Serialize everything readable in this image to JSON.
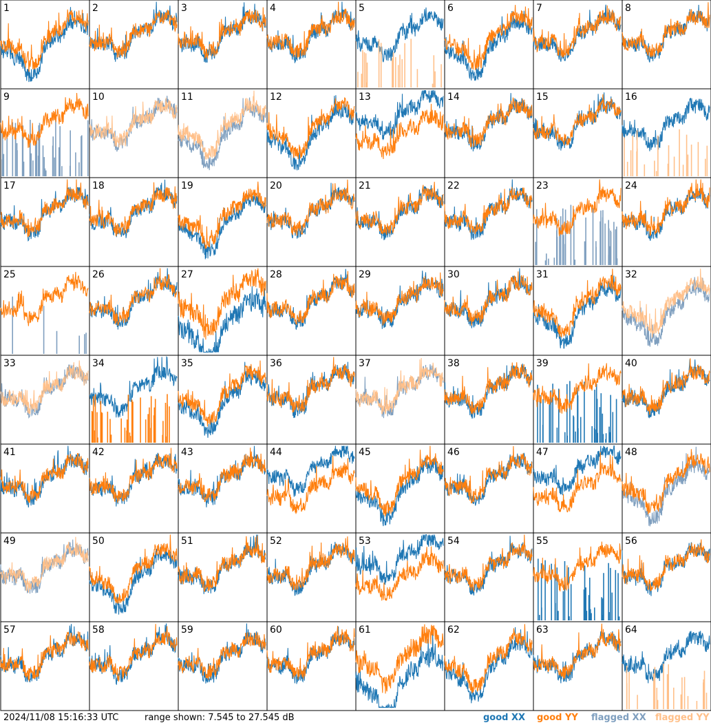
{
  "footer": {
    "timestamp": "2024/11/08 15:16:33 UTC",
    "range_text": "range shown: 7.545 to 27.545 dB",
    "legend": {
      "good_xx": "good XX",
      "good_yy": "good YY",
      "flagged_xx": "flagged XX",
      "flagged_yy": "flagged YY"
    }
  },
  "colors": {
    "good_xx": "#1f77b4",
    "good_yy": "#ff7f0e",
    "flagged_xx": "#7f9fbf",
    "flagged_yy": "#ffc08a",
    "border": "#000000"
  },
  "chart_data": {
    "type": "line",
    "layout": "8x8 small-multiples of per-tile spectra",
    "ylim_db": [
      7.545,
      27.545
    ],
    "series_names": [
      "good XX",
      "good YY",
      "flagged XX",
      "flagged YY"
    ],
    "tiles": [
      {
        "label": "1",
        "xx": "good",
        "yy": "good",
        "style": "deep"
      },
      {
        "label": "2",
        "xx": "good",
        "yy": "good",
        "style": "normal"
      },
      {
        "label": "3",
        "xx": "good",
        "yy": "good",
        "style": "normal"
      },
      {
        "label": "4",
        "xx": "good",
        "yy": "good",
        "style": "normal"
      },
      {
        "label": "5",
        "xx": "good",
        "yy": "flagged",
        "style": "yy-spikes"
      },
      {
        "label": "6",
        "xx": "good",
        "yy": "good",
        "style": "deep"
      },
      {
        "label": "7",
        "xx": "good",
        "yy": "good",
        "style": "normal"
      },
      {
        "label": "8",
        "xx": "good",
        "yy": "good",
        "style": "normal"
      },
      {
        "label": "9",
        "xx": "flagged",
        "yy": "good",
        "style": "xx-spikes"
      },
      {
        "label": "10",
        "xx": "flagged",
        "yy": "flagged",
        "style": "normal"
      },
      {
        "label": "11",
        "xx": "flagged",
        "yy": "flagged",
        "style": "deep"
      },
      {
        "label": "12",
        "xx": "good",
        "yy": "good",
        "style": "deep"
      },
      {
        "label": "13",
        "xx": "good",
        "yy": "good",
        "style": "split"
      },
      {
        "label": "14",
        "xx": "good",
        "yy": "good",
        "style": "normal"
      },
      {
        "label": "15",
        "xx": "good",
        "yy": "good",
        "style": "normal"
      },
      {
        "label": "16",
        "xx": "good",
        "yy": "flagged",
        "style": "yy-spikes"
      },
      {
        "label": "17",
        "xx": "good",
        "yy": "good",
        "style": "normal"
      },
      {
        "label": "18",
        "xx": "good",
        "yy": "good",
        "style": "normal"
      },
      {
        "label": "19",
        "xx": "good",
        "yy": "good",
        "style": "deep"
      },
      {
        "label": "20",
        "xx": "good",
        "yy": "good",
        "style": "normal"
      },
      {
        "label": "21",
        "xx": "good",
        "yy": "good",
        "style": "normal"
      },
      {
        "label": "22",
        "xx": "good",
        "yy": "good",
        "style": "normal"
      },
      {
        "label": "23",
        "xx": "flagged",
        "yy": "good",
        "style": "xx-spikes"
      },
      {
        "label": "24",
        "xx": "good",
        "yy": "good",
        "style": "normal"
      },
      {
        "label": "25",
        "xx": "flagged",
        "yy": "good",
        "style": "xx-spikes-sparse"
      },
      {
        "label": "26",
        "xx": "good",
        "yy": "good",
        "style": "normal"
      },
      {
        "label": "27",
        "xx": "good",
        "yy": "good",
        "style": "split-deep"
      },
      {
        "label": "28",
        "xx": "good",
        "yy": "good",
        "style": "normal"
      },
      {
        "label": "29",
        "xx": "good",
        "yy": "good",
        "style": "normal"
      },
      {
        "label": "30",
        "xx": "good",
        "yy": "good",
        "style": "normal"
      },
      {
        "label": "31",
        "xx": "good",
        "yy": "good",
        "style": "deep"
      },
      {
        "label": "32",
        "xx": "flagged",
        "yy": "flagged",
        "style": "deep"
      },
      {
        "label": "33",
        "xx": "flagged",
        "yy": "flagged",
        "style": "normal"
      },
      {
        "label": "34",
        "xx": "good",
        "yy": "good",
        "style": "yy-spikes-good"
      },
      {
        "label": "35",
        "xx": "good",
        "yy": "good",
        "style": "deep"
      },
      {
        "label": "36",
        "xx": "good",
        "yy": "good",
        "style": "normal"
      },
      {
        "label": "37",
        "xx": "flagged",
        "yy": "flagged",
        "style": "normal"
      },
      {
        "label": "38",
        "xx": "good",
        "yy": "good",
        "style": "normal"
      },
      {
        "label": "39",
        "xx": "good",
        "yy": "good",
        "style": "xx-spikes-good"
      },
      {
        "label": "40",
        "xx": "good",
        "yy": "good",
        "style": "normal"
      },
      {
        "label": "41",
        "xx": "good",
        "yy": "good",
        "style": "normal"
      },
      {
        "label": "42",
        "xx": "good",
        "yy": "good",
        "style": "normal"
      },
      {
        "label": "43",
        "xx": "good",
        "yy": "good",
        "style": "normal"
      },
      {
        "label": "44",
        "xx": "good",
        "yy": "good",
        "style": "split"
      },
      {
        "label": "45",
        "xx": "good",
        "yy": "good",
        "style": "deep"
      },
      {
        "label": "46",
        "xx": "good",
        "yy": "good",
        "style": "normal"
      },
      {
        "label": "47",
        "xx": "good",
        "yy": "good",
        "style": "split"
      },
      {
        "label": "48",
        "xx": "flagged",
        "yy": "good",
        "style": "deep"
      },
      {
        "label": "49",
        "xx": "flagged",
        "yy": "flagged",
        "style": "normal"
      },
      {
        "label": "50",
        "xx": "good",
        "yy": "good",
        "style": "deep"
      },
      {
        "label": "51",
        "xx": "good",
        "yy": "good",
        "style": "normal"
      },
      {
        "label": "52",
        "xx": "good",
        "yy": "good",
        "style": "normal"
      },
      {
        "label": "53",
        "xx": "good",
        "yy": "good",
        "style": "split"
      },
      {
        "label": "54",
        "xx": "good",
        "yy": "good",
        "style": "normal"
      },
      {
        "label": "55",
        "xx": "good",
        "yy": "good",
        "style": "xx-spikes-good"
      },
      {
        "label": "56",
        "xx": "good",
        "yy": "good",
        "style": "normal"
      },
      {
        "label": "57",
        "xx": "good",
        "yy": "good",
        "style": "normal"
      },
      {
        "label": "58",
        "xx": "good",
        "yy": "good",
        "style": "normal"
      },
      {
        "label": "59",
        "xx": "good",
        "yy": "good",
        "style": "normal"
      },
      {
        "label": "60",
        "xx": "good",
        "yy": "good",
        "style": "normal"
      },
      {
        "label": "61",
        "xx": "good",
        "yy": "good",
        "style": "split-deep"
      },
      {
        "label": "62",
        "xx": "good",
        "yy": "good",
        "style": "deep"
      },
      {
        "label": "63",
        "xx": "good",
        "yy": "good",
        "style": "normal"
      },
      {
        "label": "64",
        "xx": "good",
        "yy": "flagged",
        "style": "yy-spikes"
      }
    ]
  }
}
